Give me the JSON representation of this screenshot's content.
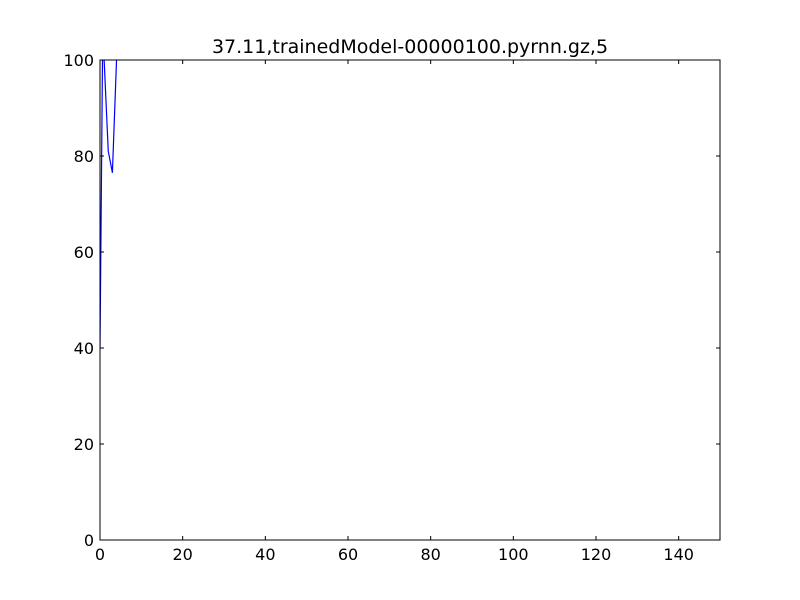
{
  "chart_data": {
    "type": "line",
    "title": "37.11,trainedModel-00000100.pyrnn.gz,5",
    "xlabel": "",
    "ylabel": "",
    "xlim": [
      0,
      150
    ],
    "ylim": [
      0,
      100
    ],
    "xticks": [
      0,
      20,
      40,
      60,
      80,
      100,
      120,
      140
    ],
    "yticks": [
      0,
      20,
      40,
      60,
      80,
      100
    ],
    "grid": false,
    "series": [
      {
        "color": "#0000ff",
        "x": [
          0,
          0.6,
          1,
          2,
          3,
          4
        ],
        "y": [
          40,
          100,
          100,
          81,
          76.5,
          100
        ],
        "clip_to_axes": true
      }
    ]
  }
}
